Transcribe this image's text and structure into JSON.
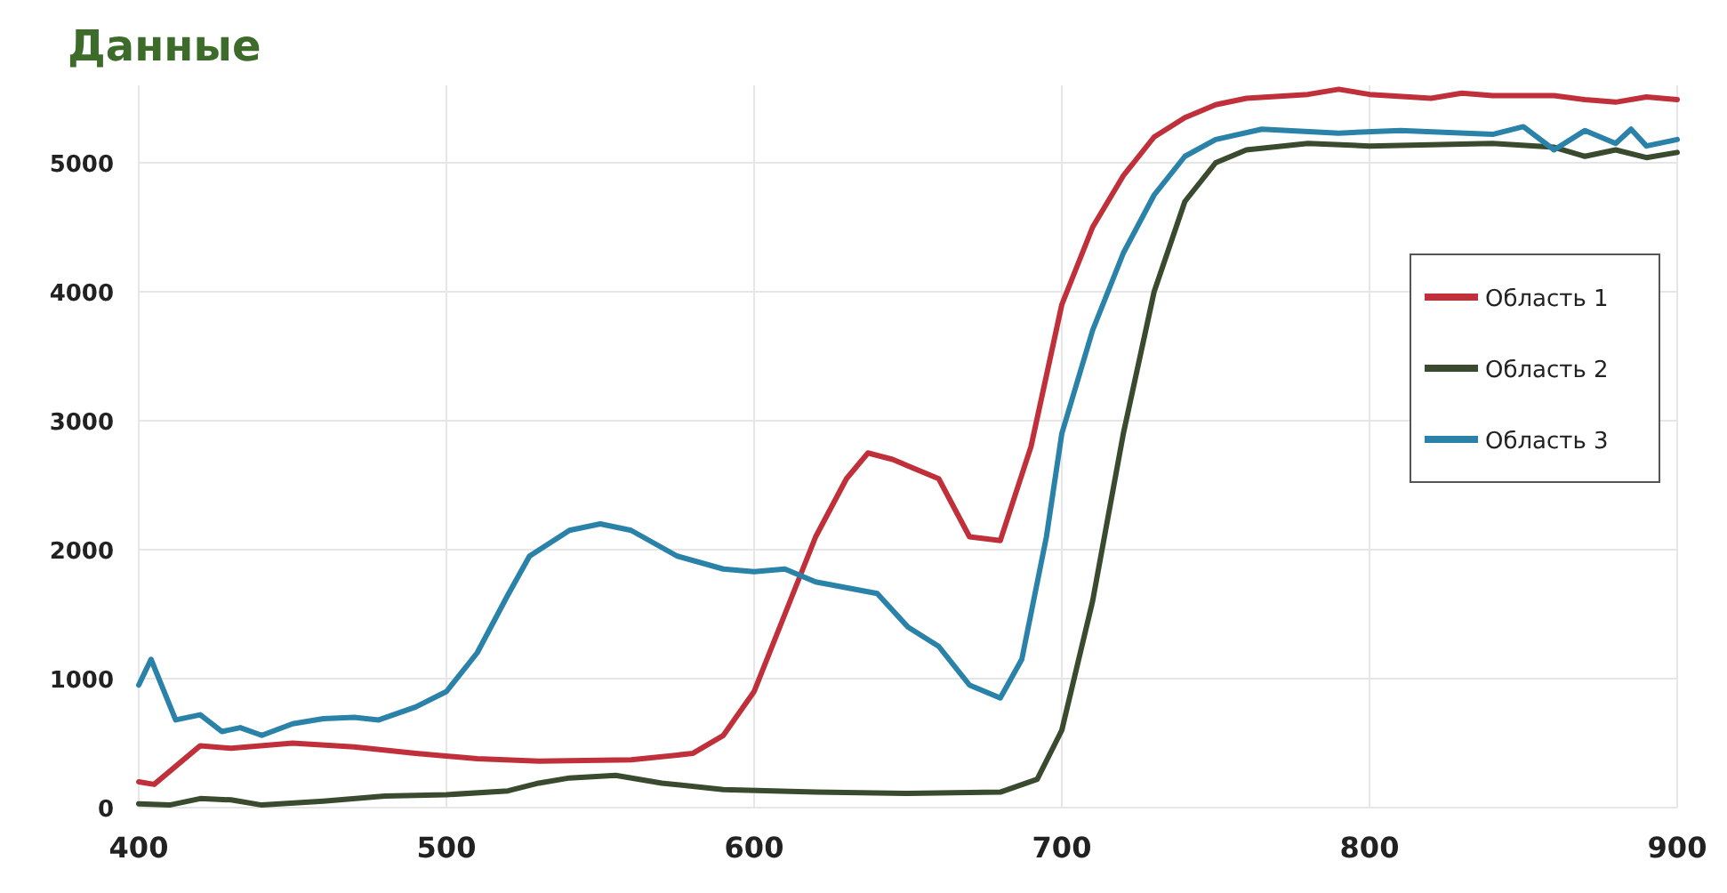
{
  "chart_data": {
    "type": "line",
    "title": "Данные",
    "xlim": [
      400,
      900
    ],
    "xticks": [
      400,
      500,
      600,
      700,
      800,
      900
    ],
    "ylim": [
      0,
      5600
    ],
    "yticks": [
      0,
      1000,
      2000,
      3000,
      4000,
      5000
    ],
    "grid": true,
    "legend": "right",
    "line_style": "solid",
    "marker": "none",
    "series": [
      {
        "name": "Область 1",
        "color": "#c0303a",
        "x": [
          400,
          405,
          420,
          430,
          450,
          470,
          490,
          510,
          530,
          560,
          580,
          590,
          600,
          610,
          620,
          630,
          637,
          645,
          660,
          670,
          680,
          690,
          700,
          710,
          720,
          730,
          740,
          750,
          760,
          780,
          790,
          800,
          820,
          830,
          840,
          860,
          870,
          880,
          890,
          900
        ],
        "values": [
          200,
          180,
          480,
          460,
          500,
          470,
          420,
          380,
          360,
          370,
          420,
          560,
          900,
          1500,
          2100,
          2550,
          2750,
          2700,
          2550,
          2100,
          2070,
          2800,
          3900,
          4500,
          4900,
          5200,
          5350,
          5450,
          5500,
          5530,
          5570,
          5530,
          5500,
          5540,
          5520,
          5520,
          5490,
          5470,
          5510,
          5490
        ]
      },
      {
        "name": "Область 2",
        "color": "#3a4a2e",
        "x": [
          400,
          410,
          420,
          430,
          440,
          460,
          480,
          500,
          520,
          530,
          540,
          555,
          570,
          590,
          620,
          650,
          680,
          692,
          700,
          710,
          720,
          730,
          740,
          750,
          760,
          780,
          800,
          840,
          860,
          870,
          880,
          890,
          900
        ],
        "values": [
          30,
          20,
          70,
          60,
          20,
          50,
          90,
          100,
          130,
          190,
          230,
          250,
          190,
          140,
          120,
          110,
          120,
          220,
          600,
          1600,
          2900,
          4000,
          4700,
          5000,
          5100,
          5150,
          5130,
          5150,
          5120,
          5050,
          5100,
          5040,
          5080
        ]
      },
      {
        "name": "Область 3",
        "color": "#2a82a8",
        "x": [
          400,
          404,
          412,
          420,
          427,
          433,
          440,
          450,
          460,
          470,
          478,
          490,
          500,
          510,
          520,
          527,
          540,
          550,
          560,
          575,
          590,
          600,
          610,
          620,
          640,
          650,
          660,
          670,
          680,
          687,
          695,
          700,
          710,
          720,
          730,
          740,
          750,
          765,
          790,
          810,
          840,
          850,
          860,
          870,
          880,
          885,
          890,
          900
        ],
        "values": [
          950,
          1150,
          680,
          720,
          590,
          620,
          560,
          650,
          690,
          700,
          680,
          780,
          900,
          1200,
          1650,
          1950,
          2150,
          2200,
          2150,
          1950,
          1850,
          1830,
          1850,
          1750,
          1660,
          1400,
          1250,
          950,
          850,
          1150,
          2100,
          2900,
          3700,
          4300,
          4750,
          5050,
          5180,
          5260,
          5230,
          5250,
          5220,
          5280,
          5100,
          5250,
          5150,
          5260,
          5130,
          5180
        ]
      }
    ]
  }
}
